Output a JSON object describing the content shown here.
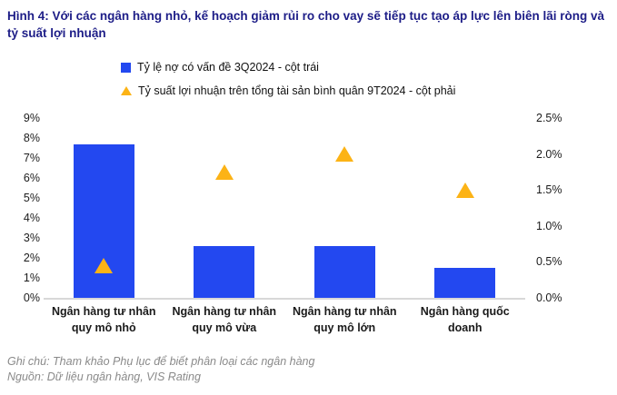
{
  "title": "Hình 4: Với các ngân hàng nhỏ, kế hoạch giảm rủi ro cho vay sẽ tiếp tục tạo áp lực lên biên lãi ròng và tỷ suất lợi nhuận",
  "colors": {
    "title": "#1d1d87",
    "bar": "#2348f0",
    "triangle": "#fcb316",
    "axis_line": "#d8d8d8",
    "tick_text": "#1c1c1c",
    "footer_text": "#8a8a8a"
  },
  "legend": {
    "items": [
      {
        "marker": "square-icon",
        "color": "#2348f0",
        "label": "Tỷ lệ nợ có vấn đề 3Q2024 - cột trái"
      },
      {
        "marker": "triangle-icon",
        "color": "#fcb316",
        "label": "Tỷ suất lợi nhuận trên tổng tài sản bình quân 9T2024 - cột phải"
      }
    ]
  },
  "chart_data": {
    "type": "bar",
    "title": "Hình 4: Với các ngân hàng nhỏ, kế hoạch giảm rủi ro cho vay sẽ tiếp tục tạo áp lực lên biên lãi ròng và tỷ suất lợi nhuận",
    "categories": [
      "Ngân hàng tư nhân quy mô nhỏ",
      "Ngân hàng tư nhân quy mô vừa",
      "Ngân hàng tư nhân quy mô lớn",
      "Ngân hàng quốc doanh"
    ],
    "series": [
      {
        "name": "Tỷ lệ nợ có vấn đề 3Q2024 - cột trái",
        "type": "bar",
        "axis": "left",
        "color": "#2348f0",
        "values": [
          7.7,
          2.6,
          2.6,
          1.5
        ]
      },
      {
        "name": "Tỷ suất lợi nhuận trên tổng tài sản bình quân 9T2024 - cột phải",
        "type": "scatter",
        "marker": "triangle",
        "axis": "right",
        "color": "#fcb316",
        "values": [
          0.45,
          1.75,
          2.0,
          1.5
        ]
      }
    ],
    "left_axis": {
      "min": 0,
      "max": 9,
      "step": 1,
      "tick_labels": [
        "0%",
        "1%",
        "2%",
        "3%",
        "4%",
        "5%",
        "6%",
        "7%",
        "8%",
        "9%"
      ]
    },
    "right_axis": {
      "min": 0,
      "max": 2.5,
      "step": 0.5,
      "tick_labels": [
        "0.0%",
        "0.5%",
        "1.0%",
        "1.5%",
        "2.0%",
        "2.5%"
      ]
    },
    "grid": false,
    "legend_position": "top-left"
  },
  "footer": {
    "note": "Ghi chú: Tham khảo Phụ lục để biết phân loại các ngân hàng",
    "source": "Nguồn: Dữ liệu ngân hàng, VIS Rating"
  }
}
